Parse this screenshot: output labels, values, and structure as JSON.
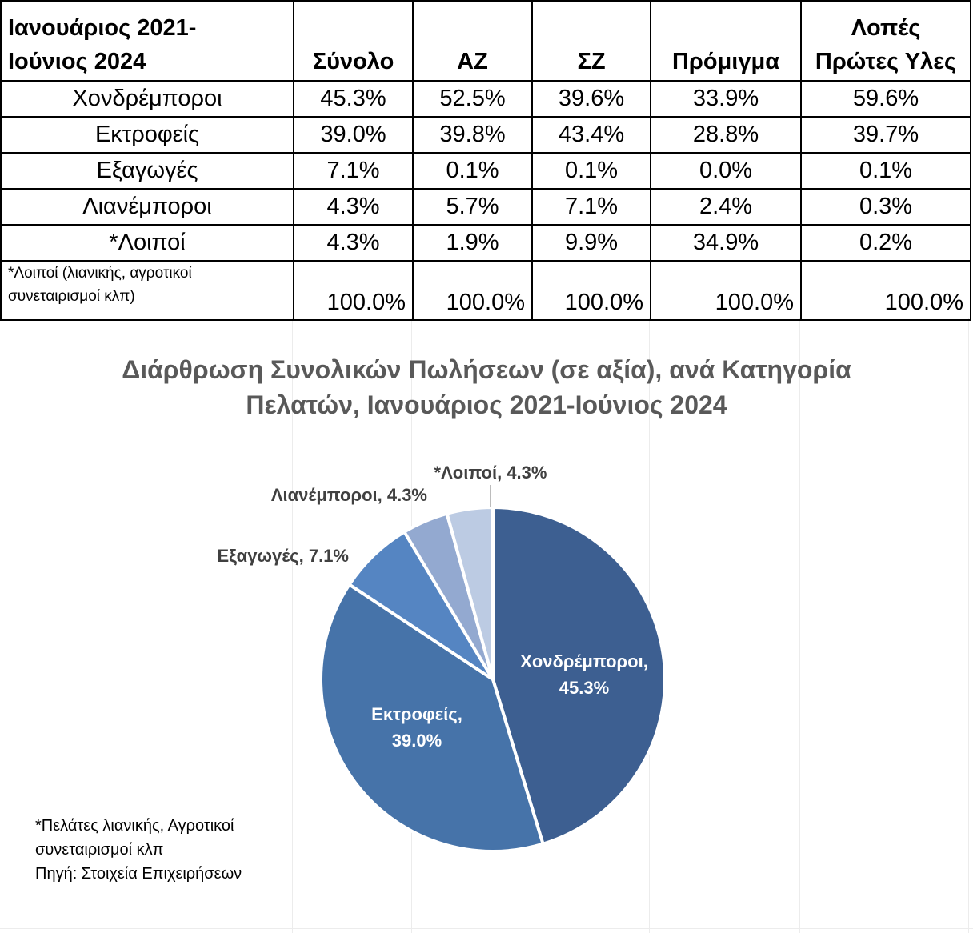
{
  "table": {
    "corner": [
      "Ιανουάριος 2021-",
      "Ιούνιος 2024"
    ],
    "columns": [
      [
        "Σύνολο"
      ],
      [
        "ΑΖ"
      ],
      [
        "ΣΖ"
      ],
      [
        "Πρόμιγμα"
      ],
      [
        "Λοπές",
        "Πρώτες Υλες"
      ]
    ],
    "rows": [
      {
        "label": "Χονδρέμποροι",
        "values": [
          "45.3%",
          "52.5%",
          "39.6%",
          "33.9%",
          "59.6%"
        ]
      },
      {
        "label": "Εκτροφείς",
        "values": [
          "39.0%",
          "39.8%",
          "43.4%",
          "28.8%",
          "39.7%"
        ]
      },
      {
        "label": "Εξαγωγές",
        "values": [
          "7.1%",
          "0.1%",
          "0.1%",
          "0.0%",
          "0.1%"
        ]
      },
      {
        "label": "Λιανέμποροι",
        "values": [
          "4.3%",
          "5.7%",
          "7.1%",
          "2.4%",
          "0.3%"
        ]
      },
      {
        "label": "*Λοιποί",
        "values": [
          "4.3%",
          "1.9%",
          "9.9%",
          "34.9%",
          "0.2%"
        ]
      }
    ],
    "total_note": [
      "*Λοιποί (λιανικής, αγροτικοί",
      "συνεταιρισμοί κλπ)"
    ],
    "totals": [
      "100.0%",
      "100.0%",
      "100.0%",
      "100.0%",
      "100.0%"
    ]
  },
  "chart_data": {
    "type": "pie",
    "title": [
      "Διάρθρωση Συνολικών Πωλήσεων (σε αξία), ανά Κατηγορία",
      "Πελατών, Ιανουάριος 2021-Ιούνιος 2024"
    ],
    "slices": [
      {
        "name": "Χονδρέμποροι",
        "value": 45.3,
        "label": [
          "Χονδρέμποροι,",
          "45.3%"
        ],
        "color": "#3d5f91"
      },
      {
        "name": "Εκτροφείς",
        "value": 39.0,
        "label": [
          "Εκτροφείς,",
          "39.0%"
        ],
        "color": "#4673a9"
      },
      {
        "name": "Εξαγωγές",
        "value": 7.1,
        "label": [
          "Εξαγωγές, 7.1%"
        ],
        "color": "#5585c2"
      },
      {
        "name": "Λιανέμποροι",
        "value": 4.3,
        "label": [
          "Λιανέμποροι, 4.3%"
        ],
        "color": "#93a9d0"
      },
      {
        "name": "*Λοιποί",
        "value": 4.3,
        "label": [
          "*Λοιποί, 4.3%"
        ],
        "color": "#bccbe3"
      }
    ],
    "inside_label_color": "#ffffff",
    "outside_label_color": "#404040"
  },
  "footnote": [
    "*Πελάτες λιανικής, Αγροτικοί",
    "συνεταιρισμοί κλπ",
    "Πηγή: Στοιχεία Επιχειρήσεων"
  ]
}
